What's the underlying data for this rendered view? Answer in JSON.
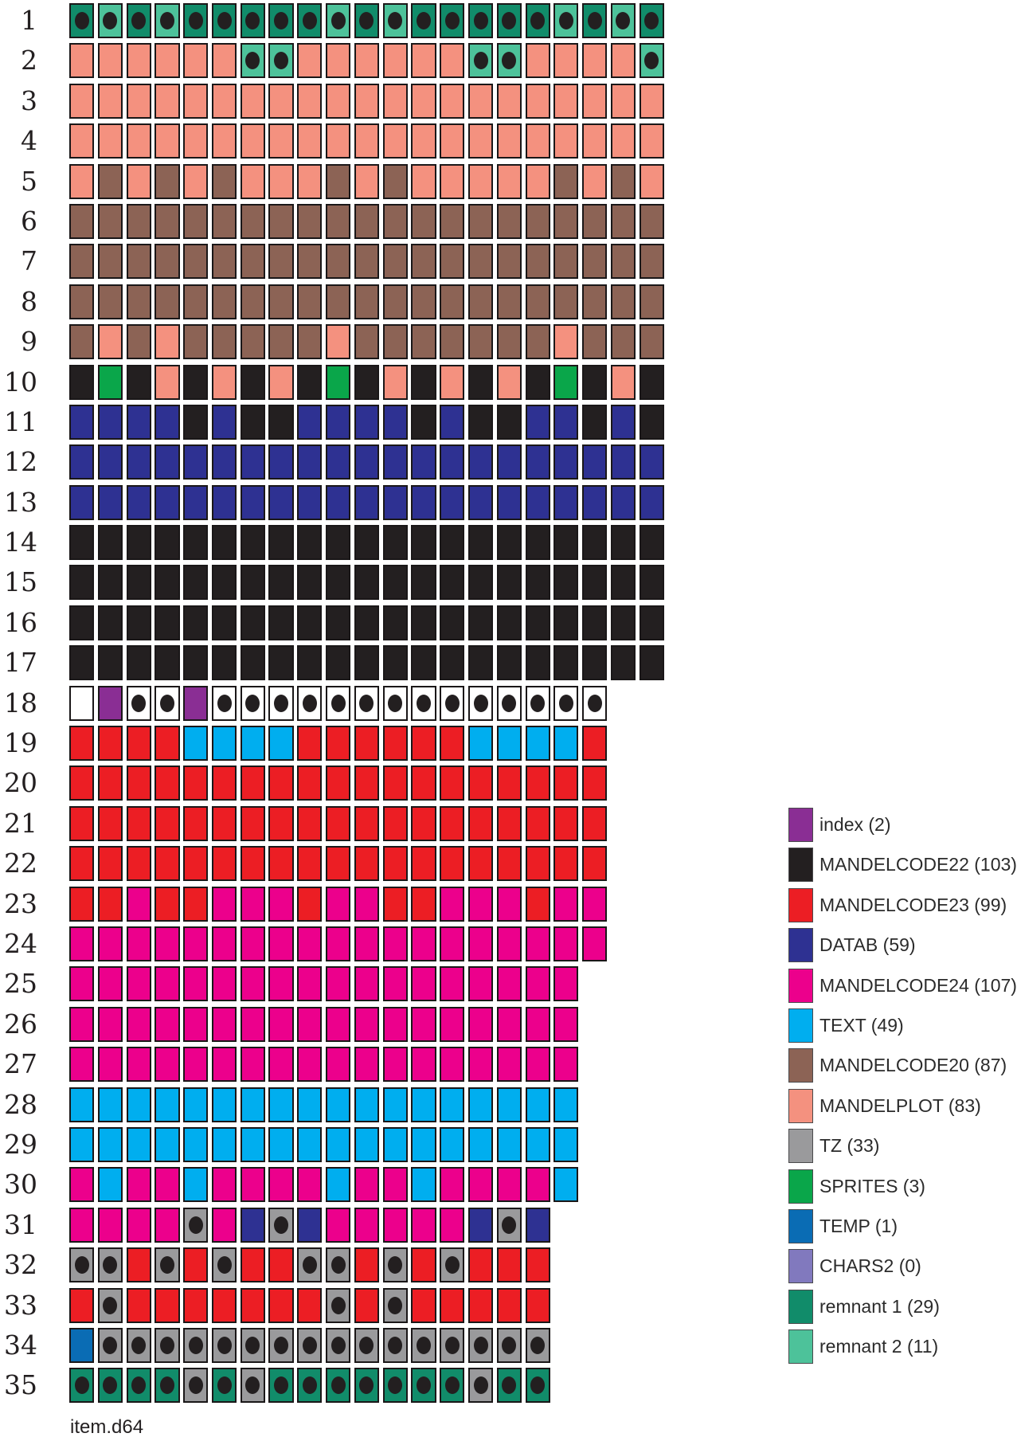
{
  "chart_data": {
    "type": "heatmap",
    "description": "disk block map, one row per track, one cell per sector; cells colored by file, black oval marks dotted sectors",
    "footer": "item.d64",
    "palette": {
      "IX": {
        "name": "index",
        "color": "#8a2e94"
      },
      "M22": {
        "name": "mandelcode22",
        "color": "#231f20"
      },
      "M23": {
        "name": "mandelcode23",
        "color": "#ec1e24"
      },
      "DB": {
        "name": "datab",
        "color": "#2e3192"
      },
      "M24": {
        "name": "mandelcode24",
        "color": "#ec008c"
      },
      "TX": {
        "name": "text",
        "color": "#00aeef"
      },
      "M20": {
        "name": "mandelcode20",
        "color": "#8c6355"
      },
      "MP": {
        "name": "mandelplot",
        "color": "#f4917f"
      },
      "TZ": {
        "name": "tz",
        "color": "#9a9a9c"
      },
      "SP": {
        "name": "sprites",
        "color": "#0aa64a"
      },
      "TE": {
        "name": "temp",
        "color": "#0a6cb4"
      },
      "CH": {
        "name": "chars2",
        "color": "#8179be"
      },
      "R1": {
        "name": "remnant-1",
        "color": "#118c6a"
      },
      "R2": {
        "name": "remnant-2",
        "color": "#4dc29a"
      },
      "FREE": {
        "name": "free",
        "color": "#ffffff"
      }
    },
    "legend": [
      {
        "label": "index (2)",
        "color": "#8a2e94"
      },
      {
        "label": "MANDELCODE22 (103)",
        "color": "#231f20"
      },
      {
        "label": "MANDELCODE23 (99)",
        "color": "#ec1e24"
      },
      {
        "label": "DATAB (59)",
        "color": "#2e3192"
      },
      {
        "label": "MANDELCODE24 (107)",
        "color": "#ec008c"
      },
      {
        "label": "TEXT (49)",
        "color": "#00aeef"
      },
      {
        "label": "MANDELCODE20 (87)",
        "color": "#8c6355"
      },
      {
        "label": "MANDELPLOT (83)",
        "color": "#f4917f"
      },
      {
        "label": "TZ (33)",
        "color": "#9a9a9c"
      },
      {
        "label": "SPRITES (3)",
        "color": "#0aa64a"
      },
      {
        "label": "TEMP (1)",
        "color": "#0a6cb4"
      },
      {
        "label": "CHARS2 (0)",
        "color": "#8179be"
      },
      {
        "label": "remnant 1 (29)",
        "color": "#118c6a"
      },
      {
        "label": "remnant 2 (11)",
        "color": "#4dc29a"
      }
    ],
    "tracks": [
      {
        "track": 1,
        "sectors": [
          "R1*",
          "R2*",
          "R1*",
          "R2*",
          "R1*",
          "R1*",
          "R1*",
          "R1*",
          "R1*",
          "R2*",
          "R1*",
          "R2*",
          "R1*",
          "R1*",
          "R1*",
          "R1*",
          "R1*",
          "R2*",
          "R1*",
          "R2*",
          "R1*"
        ]
      },
      {
        "track": 2,
        "sectors": [
          "MP",
          "MP",
          "MP",
          "MP",
          "MP",
          "MP",
          "R2*",
          "R2*",
          "MP",
          "MP",
          "MP",
          "MP",
          "MP",
          "MP",
          "R2*",
          "R2*",
          "MP",
          "MP",
          "MP",
          "MP",
          "R2*"
        ]
      },
      {
        "track": 3,
        "sectors": [
          "MP",
          "MP",
          "MP",
          "MP",
          "MP",
          "MP",
          "MP",
          "MP",
          "MP",
          "MP",
          "MP",
          "MP",
          "MP",
          "MP",
          "MP",
          "MP",
          "MP",
          "MP",
          "MP",
          "MP",
          "MP"
        ]
      },
      {
        "track": 4,
        "sectors": [
          "MP",
          "MP",
          "MP",
          "MP",
          "MP",
          "MP",
          "MP",
          "MP",
          "MP",
          "MP",
          "MP",
          "MP",
          "MP",
          "MP",
          "MP",
          "MP",
          "MP",
          "MP",
          "MP",
          "MP",
          "MP"
        ]
      },
      {
        "track": 5,
        "sectors": [
          "MP",
          "M20",
          "MP",
          "M20",
          "MP",
          "M20",
          "MP",
          "MP",
          "MP",
          "M20",
          "MP",
          "M20",
          "MP",
          "MP",
          "MP",
          "MP",
          "MP",
          "M20",
          "MP",
          "M20",
          "MP"
        ]
      },
      {
        "track": 6,
        "sectors": [
          "M20",
          "M20",
          "M20",
          "M20",
          "M20",
          "M20",
          "M20",
          "M20",
          "M20",
          "M20",
          "M20",
          "M20",
          "M20",
          "M20",
          "M20",
          "M20",
          "M20",
          "M20",
          "M20",
          "M20",
          "M20"
        ]
      },
      {
        "track": 7,
        "sectors": [
          "M20",
          "M20",
          "M20",
          "M20",
          "M20",
          "M20",
          "M20",
          "M20",
          "M20",
          "M20",
          "M20",
          "M20",
          "M20",
          "M20",
          "M20",
          "M20",
          "M20",
          "M20",
          "M20",
          "M20",
          "M20"
        ]
      },
      {
        "track": 8,
        "sectors": [
          "M20",
          "M20",
          "M20",
          "M20",
          "M20",
          "M20",
          "M20",
          "M20",
          "M20",
          "M20",
          "M20",
          "M20",
          "M20",
          "M20",
          "M20",
          "M20",
          "M20",
          "M20",
          "M20",
          "M20",
          "M20"
        ]
      },
      {
        "track": 9,
        "sectors": [
          "M20",
          "MP",
          "M20",
          "MP",
          "M20",
          "M20",
          "M20",
          "M20",
          "M20",
          "MP",
          "M20",
          "M20",
          "M20",
          "M20",
          "M20",
          "M20",
          "M20",
          "MP",
          "M20",
          "M20",
          "M20"
        ]
      },
      {
        "track": 10,
        "sectors": [
          "M22",
          "SP",
          "M22",
          "MP",
          "M22",
          "MP",
          "M22",
          "MP",
          "M22",
          "SP",
          "M22",
          "MP",
          "M22",
          "MP",
          "M22",
          "MP",
          "M22",
          "SP",
          "M22",
          "MP",
          "M22"
        ]
      },
      {
        "track": 11,
        "sectors": [
          "DB",
          "DB",
          "DB",
          "DB",
          "M22",
          "DB",
          "M22",
          "M22",
          "DB",
          "DB",
          "DB",
          "DB",
          "M22",
          "DB",
          "M22",
          "M22",
          "DB",
          "DB",
          "M22",
          "DB",
          "M22"
        ]
      },
      {
        "track": 12,
        "sectors": [
          "DB",
          "DB",
          "DB",
          "DB",
          "DB",
          "DB",
          "DB",
          "DB",
          "DB",
          "DB",
          "DB",
          "DB",
          "DB",
          "DB",
          "DB",
          "DB",
          "DB",
          "DB",
          "DB",
          "DB",
          "DB"
        ]
      },
      {
        "track": 13,
        "sectors": [
          "DB",
          "DB",
          "DB",
          "DB",
          "DB",
          "DB",
          "DB",
          "DB",
          "DB",
          "DB",
          "DB",
          "DB",
          "DB",
          "DB",
          "DB",
          "DB",
          "DB",
          "DB",
          "DB",
          "DB",
          "DB"
        ]
      },
      {
        "track": 14,
        "sectors": [
          "M22",
          "M22",
          "M22",
          "M22",
          "M22",
          "M22",
          "M22",
          "M22",
          "M22",
          "M22",
          "M22",
          "M22",
          "M22",
          "M22",
          "M22",
          "M22",
          "M22",
          "M22",
          "M22",
          "M22",
          "M22"
        ]
      },
      {
        "track": 15,
        "sectors": [
          "M22",
          "M22",
          "M22",
          "M22",
          "M22",
          "M22",
          "M22",
          "M22",
          "M22",
          "M22",
          "M22",
          "M22",
          "M22",
          "M22",
          "M22",
          "M22",
          "M22",
          "M22",
          "M22",
          "M22",
          "M22"
        ]
      },
      {
        "track": 16,
        "sectors": [
          "M22",
          "M22",
          "M22",
          "M22",
          "M22",
          "M22",
          "M22",
          "M22",
          "M22",
          "M22",
          "M22",
          "M22",
          "M22",
          "M22",
          "M22",
          "M22",
          "M22",
          "M22",
          "M22",
          "M22",
          "M22"
        ]
      },
      {
        "track": 17,
        "sectors": [
          "M22",
          "M22",
          "M22",
          "M22",
          "M22",
          "M22",
          "M22",
          "M22",
          "M22",
          "M22",
          "M22",
          "M22",
          "M22",
          "M22",
          "M22",
          "M22",
          "M22",
          "M22",
          "M22",
          "M22",
          "M22"
        ]
      },
      {
        "track": 18,
        "sectors": [
          "FREE",
          "IX",
          "FREE*",
          "FREE*",
          "IX",
          "FREE*",
          "FREE*",
          "FREE*",
          "FREE*",
          "FREE*",
          "FREE*",
          "FREE*",
          "FREE*",
          "FREE*",
          "FREE*",
          "FREE*",
          "FREE*",
          "FREE*",
          "FREE*"
        ]
      },
      {
        "track": 19,
        "sectors": [
          "M23",
          "M23",
          "M23",
          "M23",
          "TX",
          "TX",
          "TX",
          "TX",
          "M23",
          "M23",
          "M23",
          "M23",
          "M23",
          "M23",
          "TX",
          "TX",
          "TX",
          "TX",
          "M23"
        ]
      },
      {
        "track": 20,
        "sectors": [
          "M23",
          "M23",
          "M23",
          "M23",
          "M23",
          "M23",
          "M23",
          "M23",
          "M23",
          "M23",
          "M23",
          "M23",
          "M23",
          "M23",
          "M23",
          "M23",
          "M23",
          "M23",
          "M23"
        ]
      },
      {
        "track": 21,
        "sectors": [
          "M23",
          "M23",
          "M23",
          "M23",
          "M23",
          "M23",
          "M23",
          "M23",
          "M23",
          "M23",
          "M23",
          "M23",
          "M23",
          "M23",
          "M23",
          "M23",
          "M23",
          "M23",
          "M23"
        ]
      },
      {
        "track": 22,
        "sectors": [
          "M23",
          "M23",
          "M23",
          "M23",
          "M23",
          "M23",
          "M23",
          "M23",
          "M23",
          "M23",
          "M23",
          "M23",
          "M23",
          "M23",
          "M23",
          "M23",
          "M23",
          "M23",
          "M23"
        ]
      },
      {
        "track": 23,
        "sectors": [
          "M23",
          "M23",
          "M24",
          "M23",
          "M23",
          "M24",
          "M24",
          "M24",
          "M23",
          "M24",
          "M24",
          "M23",
          "M23",
          "M24",
          "M24",
          "M24",
          "M23",
          "M24",
          "M24"
        ]
      },
      {
        "track": 24,
        "sectors": [
          "M24",
          "M24",
          "M24",
          "M24",
          "M24",
          "M24",
          "M24",
          "M24",
          "M24",
          "M24",
          "M24",
          "M24",
          "M24",
          "M24",
          "M24",
          "M24",
          "M24",
          "M24",
          "M24"
        ]
      },
      {
        "track": 25,
        "sectors": [
          "M24",
          "M24",
          "M24",
          "M24",
          "M24",
          "M24",
          "M24",
          "M24",
          "M24",
          "M24",
          "M24",
          "M24",
          "M24",
          "M24",
          "M24",
          "M24",
          "M24",
          "M24"
        ]
      },
      {
        "track": 26,
        "sectors": [
          "M24",
          "M24",
          "M24",
          "M24",
          "M24",
          "M24",
          "M24",
          "M24",
          "M24",
          "M24",
          "M24",
          "M24",
          "M24",
          "M24",
          "M24",
          "M24",
          "M24",
          "M24"
        ]
      },
      {
        "track": 27,
        "sectors": [
          "M24",
          "M24",
          "M24",
          "M24",
          "M24",
          "M24",
          "M24",
          "M24",
          "M24",
          "M24",
          "M24",
          "M24",
          "M24",
          "M24",
          "M24",
          "M24",
          "M24",
          "M24"
        ]
      },
      {
        "track": 28,
        "sectors": [
          "TX",
          "TX",
          "TX",
          "TX",
          "TX",
          "TX",
          "TX",
          "TX",
          "TX",
          "TX",
          "TX",
          "TX",
          "TX",
          "TX",
          "TX",
          "TX",
          "TX",
          "TX"
        ]
      },
      {
        "track": 29,
        "sectors": [
          "TX",
          "TX",
          "TX",
          "TX",
          "TX",
          "TX",
          "TX",
          "TX",
          "TX",
          "TX",
          "TX",
          "TX",
          "TX",
          "TX",
          "TX",
          "TX",
          "TX",
          "TX"
        ]
      },
      {
        "track": 30,
        "sectors": [
          "M24",
          "TX",
          "M24",
          "M24",
          "TX",
          "M24",
          "M24",
          "M24",
          "M24",
          "TX",
          "M24",
          "M24",
          "TX",
          "M24",
          "M24",
          "M24",
          "M24",
          "TX"
        ]
      },
      {
        "track": 31,
        "sectors": [
          "M24",
          "M24",
          "M24",
          "M24",
          "TZ*",
          "M24",
          "DB",
          "TZ*",
          "DB",
          "M24",
          "M24",
          "M24",
          "M24",
          "M24",
          "DB",
          "TZ*",
          "DB"
        ]
      },
      {
        "track": 32,
        "sectors": [
          "TZ*",
          "TZ*",
          "M23",
          "TZ*",
          "M23",
          "TZ*",
          "M23",
          "M23",
          "TZ*",
          "TZ*",
          "M23",
          "TZ*",
          "M23",
          "TZ*",
          "M23",
          "M23",
          "M23"
        ]
      },
      {
        "track": 33,
        "sectors": [
          "M23",
          "TZ*",
          "M23",
          "M23",
          "M23",
          "M23",
          "M23",
          "M23",
          "M23",
          "TZ*",
          "M23",
          "TZ*",
          "M23",
          "M23",
          "M23",
          "M23",
          "M23"
        ]
      },
      {
        "track": 34,
        "sectors": [
          "TE",
          "TZ*",
          "TZ*",
          "TZ*",
          "TZ*",
          "TZ*",
          "TZ*",
          "TZ*",
          "TZ*",
          "TZ*",
          "TZ*",
          "TZ*",
          "TZ*",
          "TZ*",
          "TZ*",
          "TZ*",
          "TZ*"
        ]
      },
      {
        "track": 35,
        "sectors": [
          "R1*",
          "R1*",
          "R1*",
          "R1*",
          "TZ*",
          "R1*",
          "TZ*",
          "R1*",
          "R1*",
          "R1*",
          "R1*",
          "R1*",
          "R1*",
          "R1*",
          "TZ*",
          "R1*",
          "R1*"
        ]
      }
    ]
  }
}
